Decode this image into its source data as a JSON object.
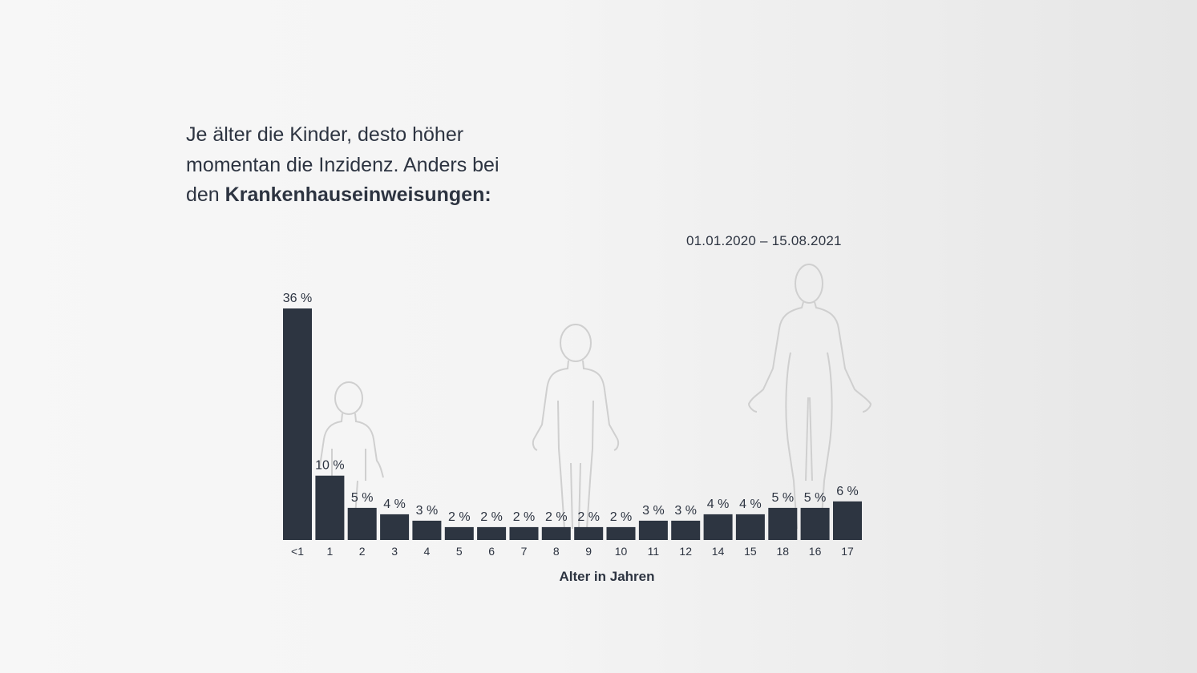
{
  "headline": {
    "line1": "Je älter die Kinder, desto höher",
    "line2": "momentan die Inzidenz. Anders bei",
    "line3_prefix": "den ",
    "line3_bold": "Krankenhauseinweisungen:"
  },
  "date_range": "01.01.2020 –  15.08.2021",
  "chart_data": {
    "type": "bar",
    "categories": [
      "<1",
      "1",
      "2",
      "3",
      "4",
      "5",
      "6",
      "7",
      "8",
      "9",
      "10",
      "11",
      "12",
      "14",
      "15",
      "18",
      "16",
      "17"
    ],
    "values": [
      36,
      10,
      5,
      4,
      3,
      2,
      2,
      2,
      2,
      2,
      2,
      3,
      3,
      4,
      4,
      5,
      5,
      6
    ],
    "value_labels": [
      "36 %",
      "10 %",
      "5 %",
      "4 %",
      "3 %",
      "2 %",
      "2 %",
      "2 %",
      "2 %",
      "2 %",
      "2 %",
      "3 %",
      "3 %",
      "4 %",
      "4 %",
      "5 %",
      "5 %",
      "6 %"
    ],
    "unit": "%",
    "xlabel": "Alter in Jahren",
    "ylabel": "",
    "ylim": [
      0,
      36
    ],
    "grid": false,
    "bar_color": "#2d3541",
    "background_icons": [
      "toddler-silhouette-icon",
      "child-silhouette-icon",
      "adult-silhouette-icon"
    ]
  }
}
